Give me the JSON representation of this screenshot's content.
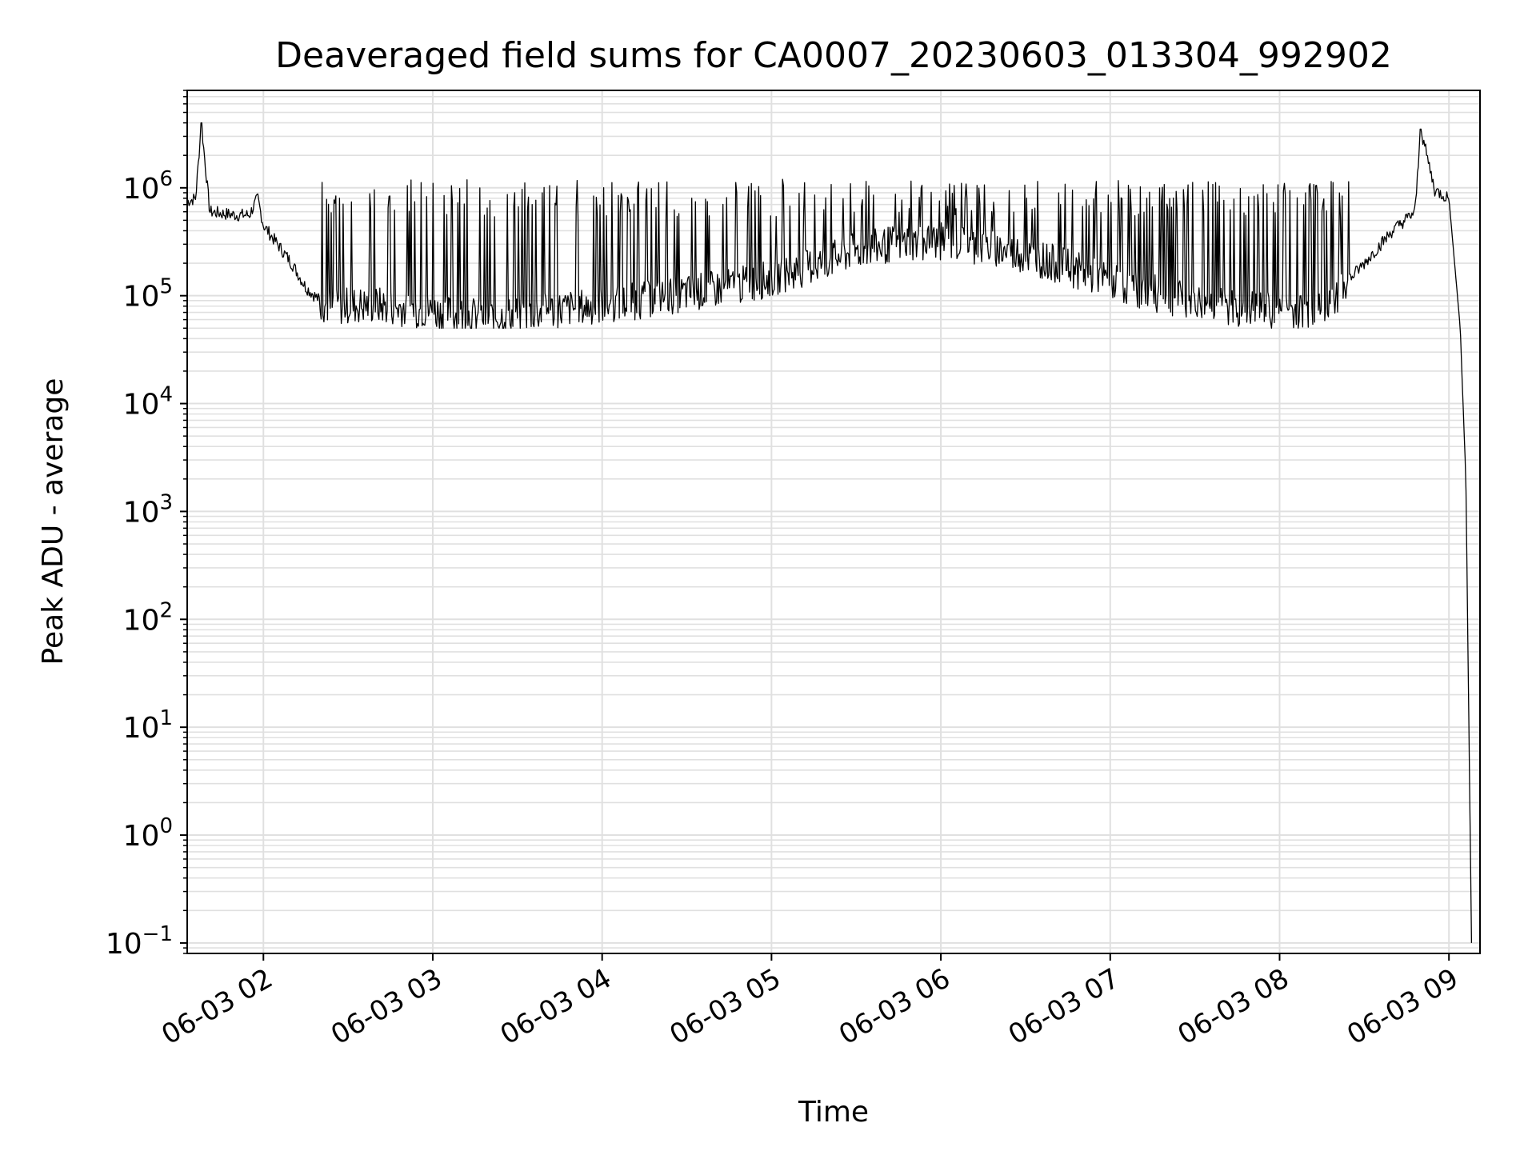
{
  "chart_data": {
    "type": "line",
    "title": "Deaveraged field sums for CA0007_20230603_013304_992902",
    "xlabel": "Time",
    "ylabel": "Peak ADU - average",
    "yscale": "log",
    "grid": true,
    "grid_minor": true,
    "legend": "none",
    "line_color": "#000000",
    "grid_color": "#e0e0e0",
    "xlim": [
      "2023-06-03 01:33",
      "2023-06-03 09:11"
    ],
    "ylim": [
      0.08,
      8000000
    ],
    "x_ticks": [
      {
        "label": "06-03 02",
        "time": "2023-06-03 02:00"
      },
      {
        "label": "06-03 03",
        "time": "2023-06-03 03:00"
      },
      {
        "label": "06-03 04",
        "time": "2023-06-03 04:00"
      },
      {
        "label": "06-03 05",
        "time": "2023-06-03 05:00"
      },
      {
        "label": "06-03 06",
        "time": "2023-06-03 06:00"
      },
      {
        "label": "06-03 07",
        "time": "2023-06-03 07:00"
      },
      {
        "label": "06-03 08",
        "time": "2023-06-03 08:00"
      },
      {
        "label": "06-03 09",
        "time": "2023-06-03 09:00"
      }
    ],
    "y_ticks": [
      {
        "value": 0.1,
        "base": "10",
        "exp": "−1"
      },
      {
        "value": 1,
        "base": "10",
        "exp": "0"
      },
      {
        "value": 10,
        "base": "10",
        "exp": "1"
      },
      {
        "value": 100,
        "base": "10",
        "exp": "2"
      },
      {
        "value": 1000,
        "base": "10",
        "exp": "3"
      },
      {
        "value": 10000,
        "base": "10",
        "exp": "4"
      },
      {
        "value": 100000,
        "base": "10",
        "exp": "5"
      },
      {
        "value": 1000000,
        "base": "10",
        "exp": "6"
      }
    ],
    "series": [
      {
        "x": [
          "2023-06-03 01:33",
          "2023-06-03 01:36",
          "2023-06-03 01:38",
          "2023-06-03 01:41",
          "2023-06-03 01:45",
          "2023-06-03 01:50",
          "2023-06-03 01:55",
          "2023-06-03 01:58",
          "2023-06-03 02:00",
          "2023-06-03 02:05",
          "2023-06-03 02:10",
          "2023-06-03 02:15",
          "2023-06-03 02:20",
          "2023-06-03 02:25",
          "2023-06-03 02:30",
          "2023-06-03 02:40",
          "2023-06-03 02:50",
          "2023-06-03 03:00",
          "2023-06-03 03:10",
          "2023-06-03 03:20",
          "2023-06-03 03:30",
          "2023-06-03 03:40",
          "2023-06-03 03:50",
          "2023-06-03 04:00",
          "2023-06-03 04:15",
          "2023-06-03 04:30",
          "2023-06-03 04:45",
          "2023-06-03 05:00",
          "2023-06-03 05:15",
          "2023-06-03 05:30",
          "2023-06-03 05:45",
          "2023-06-03 06:00",
          "2023-06-03 06:15",
          "2023-06-03 06:30",
          "2023-06-03 06:45",
          "2023-06-03 07:00",
          "2023-06-03 07:15",
          "2023-06-03 07:30",
          "2023-06-03 07:45",
          "2023-06-03 08:00",
          "2023-06-03 08:15",
          "2023-06-03 08:30",
          "2023-06-03 08:40",
          "2023-06-03 08:48",
          "2023-06-03 08:50",
          "2023-06-03 08:55",
          "2023-06-03 09:00",
          "2023-06-03 09:02",
          "2023-06-03 09:04",
          "2023-06-03 09:06",
          "2023-06-03 09:08"
        ],
        "y": [
          750000,
          800000,
          4000000,
          600000,
          580000,
          560000,
          560000,
          800000,
          450000,
          300000,
          200000,
          120000,
          90000,
          80000,
          85000,
          85000,
          80000,
          75000,
          70000,
          65000,
          70000,
          75000,
          80000,
          85000,
          95000,
          110000,
          125000,
          150000,
          200000,
          270000,
          320000,
          330000,
          300000,
          250000,
          190000,
          140000,
          110000,
          90000,
          80000,
          75000,
          75000,
          200000,
          400000,
          600000,
          3500000,
          950000,
          800000,
          200000,
          50000,
          2000,
          0.1
        ],
        "y_low_typical": 50000,
        "y_high_typical": 1200000
      }
    ]
  }
}
